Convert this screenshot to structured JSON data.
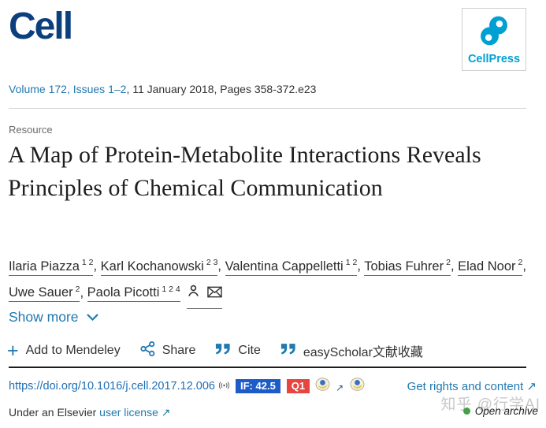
{
  "header": {
    "journal_name": "Cell",
    "publisher_name": "CellPress",
    "volume_link": "Volume 172, Issues 1–2",
    "date_pages": ", 11 January 2018, Pages 358-372.e23"
  },
  "article": {
    "type_label": "Resource",
    "title": "A Map of Protein-Metabolite Interactions Reveals Principles of Chemical Communication",
    "author_separator": ", ",
    "authors": [
      {
        "name": "Ilaria Piazza",
        "sup": "1 2"
      },
      {
        "name": "Karl Kochanowski",
        "sup": "2 3"
      },
      {
        "name": "Valentina Cappelletti",
        "sup": "1 2"
      },
      {
        "name": "Tobias Fuhrer",
        "sup": "2"
      },
      {
        "name": "Elad Noor",
        "sup": "2"
      },
      {
        "name": "Uwe Sauer",
        "sup": "2"
      },
      {
        "name": "Paola Picotti",
        "sup": "1 2 4"
      }
    ],
    "show_more_label": "Show more"
  },
  "actions": {
    "add_to_mendeley": "Add to Mendeley",
    "share": "Share",
    "cite": "Cite",
    "easyscholar": "easyScholar文献收藏"
  },
  "doi_row": {
    "doi_url": "https://doi.org/10.1016/j.cell.2017.12.006",
    "impact_factor_badge": "IF: 42.5",
    "quartile_badge": "Q1",
    "rights_link": "Get rights and content"
  },
  "footer": {
    "license_prefix": "Under an Elsevier ",
    "license_link": "user license",
    "open_archive_label": "Open archive",
    "watermark": "知乎 @行学AI"
  },
  "icons": {
    "plus": "+",
    "external_arrow": " ↗",
    "mini_arrow": "↗"
  },
  "colors": {
    "link_blue": "#2179ae",
    "doi_blue": "#1f6fb5",
    "if_badge_bg": "#1d5cc8",
    "quartile_badge_bg": "#e64540",
    "cell_navy": "#0b3f7e",
    "cellpress_teal": "#00a0d2",
    "open_archive_green": "#43a047"
  }
}
